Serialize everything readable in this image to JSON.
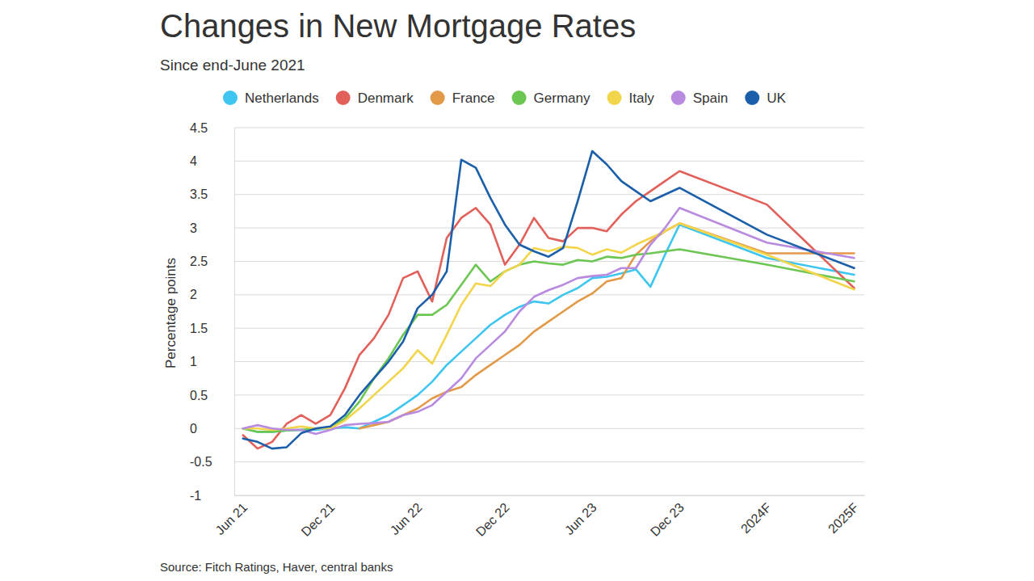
{
  "chart_data": {
    "type": "line",
    "title": "Changes in New Mortgage Rates",
    "subtitle": "Since end-June 2021",
    "ylabel": "Percentage points",
    "source": "Source: Fitch Ratings, Haver, central banks",
    "legend": "top",
    "grid": true,
    "x": [
      0,
      1,
      2,
      3,
      4,
      5,
      6,
      7,
      8,
      9,
      10,
      11,
      12,
      13,
      14,
      15,
      16,
      17,
      18,
      19,
      20,
      21,
      22,
      23,
      24,
      25,
      26,
      27,
      28,
      29,
      30,
      36,
      42
    ],
    "xlim": [
      -0.6,
      42.7
    ],
    "xticks": [
      {
        "value": 0,
        "label": "Jun 21"
      },
      {
        "value": 6,
        "label": "Dec 21"
      },
      {
        "value": 12,
        "label": "Jun 22"
      },
      {
        "value": 18,
        "label": "Dec 22"
      },
      {
        "value": 24,
        "label": "Jun 23"
      },
      {
        "value": 30,
        "label": "Dec 23"
      },
      {
        "value": 36,
        "label": "2024F"
      },
      {
        "value": 42,
        "label": "2025F"
      }
    ],
    "ylim": [
      -1,
      4.5
    ],
    "yticks": [
      -1,
      -0.5,
      0,
      0.5,
      1,
      1.5,
      2,
      2.5,
      3,
      3.5,
      4,
      4.5
    ],
    "series": [
      {
        "name": "Netherlands",
        "color": "#3ec6f0",
        "values": [
          0.0,
          -0.05,
          -0.05,
          -0.03,
          -0.02,
          -0.02,
          0.0,
          0.02,
          0.0,
          0.1,
          0.2,
          0.35,
          0.5,
          0.7,
          0.95,
          1.15,
          1.35,
          1.55,
          1.7,
          1.82,
          1.9,
          1.87,
          2.0,
          2.1,
          2.25,
          2.27,
          2.32,
          2.38,
          2.12,
          2.6,
          3.05,
          2.55,
          2.3
        ]
      },
      {
        "name": "Denmark",
        "color": "#e2605a",
        "values": [
          -0.1,
          -0.3,
          -0.2,
          0.07,
          0.2,
          0.07,
          0.2,
          0.6,
          1.1,
          1.35,
          1.7,
          2.25,
          2.35,
          1.9,
          2.85,
          3.15,
          3.3,
          3.05,
          2.45,
          2.75,
          3.15,
          2.85,
          2.8,
          3.0,
          3.0,
          2.95,
          3.2,
          3.4,
          3.55,
          3.7,
          3.85,
          3.35,
          2.1
        ]
      },
      {
        "name": "France",
        "color": "#e39a48",
        "values": [
          null,
          null,
          null,
          null,
          null,
          null,
          null,
          null,
          0.0,
          0.05,
          0.1,
          0.2,
          0.3,
          0.45,
          0.55,
          0.62,
          0.8,
          0.95,
          1.1,
          1.25,
          1.45,
          1.6,
          1.75,
          1.9,
          2.02,
          2.2,
          2.25,
          2.6,
          2.8,
          2.95,
          3.07,
          2.62,
          2.62
        ]
      },
      {
        "name": "Germany",
        "color": "#6cc652",
        "values": [
          0.0,
          -0.05,
          -0.05,
          -0.03,
          -0.02,
          0.0,
          0.02,
          0.15,
          0.4,
          0.75,
          1.05,
          1.4,
          1.7,
          1.7,
          1.85,
          2.15,
          2.45,
          2.2,
          2.35,
          2.45,
          2.5,
          2.47,
          2.45,
          2.52,
          2.5,
          2.57,
          2.55,
          2.6,
          2.62,
          2.65,
          2.68,
          2.45,
          2.2
        ]
      },
      {
        "name": "Italy",
        "color": "#f2d54b",
        "values": [
          0.0,
          0.0,
          -0.02,
          0.0,
          0.03,
          0.0,
          0.0,
          0.12,
          0.3,
          0.5,
          0.7,
          0.9,
          1.17,
          0.97,
          1.4,
          1.85,
          2.17,
          2.13,
          2.35,
          2.45,
          2.7,
          2.65,
          2.72,
          2.7,
          2.6,
          2.68,
          2.63,
          2.75,
          2.85,
          2.95,
          3.07,
          2.6,
          2.08
        ]
      },
      {
        "name": "Spain",
        "color": "#b98be0",
        "values": [
          0.0,
          0.05,
          0.0,
          -0.02,
          -0.02,
          -0.08,
          -0.02,
          0.05,
          0.07,
          0.08,
          0.1,
          0.2,
          0.25,
          0.35,
          0.55,
          0.75,
          1.05,
          1.25,
          1.45,
          1.75,
          1.97,
          2.07,
          2.15,
          2.25,
          2.28,
          2.3,
          2.4,
          2.4,
          2.75,
          3.0,
          3.3,
          2.78,
          2.55
        ]
      },
      {
        "name": "UK",
        "color": "#1b5faa",
        "values": [
          -0.15,
          -0.2,
          -0.3,
          -0.28,
          -0.07,
          0.0,
          0.03,
          0.2,
          0.5,
          0.75,
          1.0,
          1.3,
          1.8,
          2.0,
          2.35,
          4.02,
          3.9,
          3.45,
          3.05,
          2.75,
          2.65,
          2.57,
          2.7,
          3.4,
          4.15,
          3.95,
          3.7,
          3.55,
          3.4,
          3.5,
          3.6,
          2.9,
          2.4
        ]
      }
    ]
  }
}
